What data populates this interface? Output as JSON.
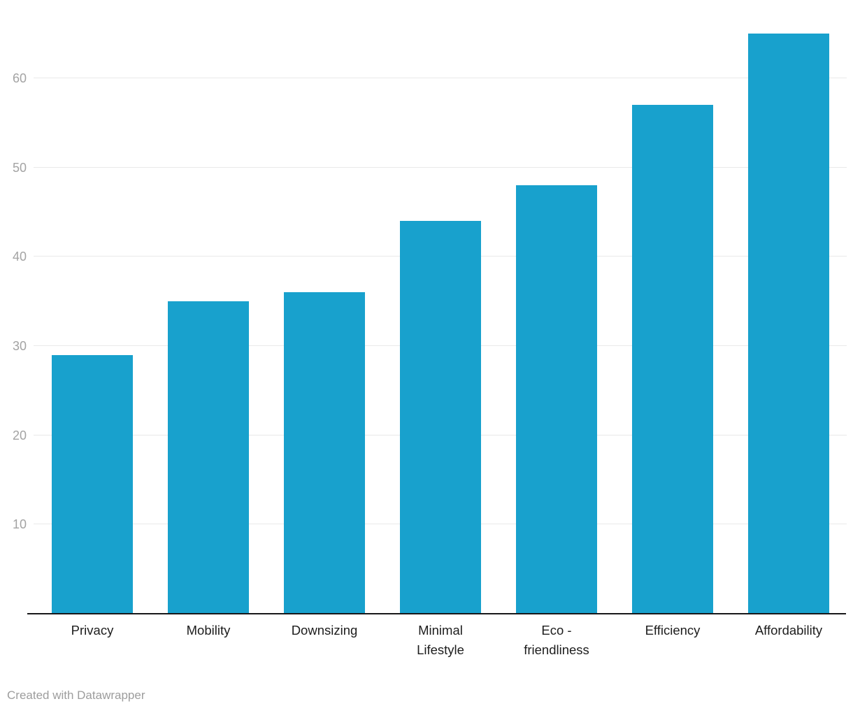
{
  "chart_data": {
    "type": "bar",
    "categories": [
      "Privacy",
      "Mobility",
      "Downsizing",
      "Minimal\nLifestyle",
      "Eco -\nfriendliness",
      "Efficiency",
      "Affordability"
    ],
    "values": [
      29,
      35,
      36,
      44,
      48,
      57,
      65
    ],
    "title": "",
    "xlabel": "",
    "ylabel": "",
    "ylim": [
      0,
      65
    ],
    "yticks": [
      10,
      20,
      30,
      40,
      50,
      60
    ],
    "grid": true,
    "legend_position": "none",
    "bar_color": "#18a1cd"
  },
  "colors": {
    "bar": "#18a1cd",
    "gridline": "#e9e9e9",
    "tick_label": "#a3a3a3",
    "category_label": "#1d1d1d",
    "axis_line": "#18181a",
    "footer_text": "#9d9d9d",
    "background": "#ffffff"
  },
  "footer": {
    "attribution": "Created with Datawrapper"
  }
}
